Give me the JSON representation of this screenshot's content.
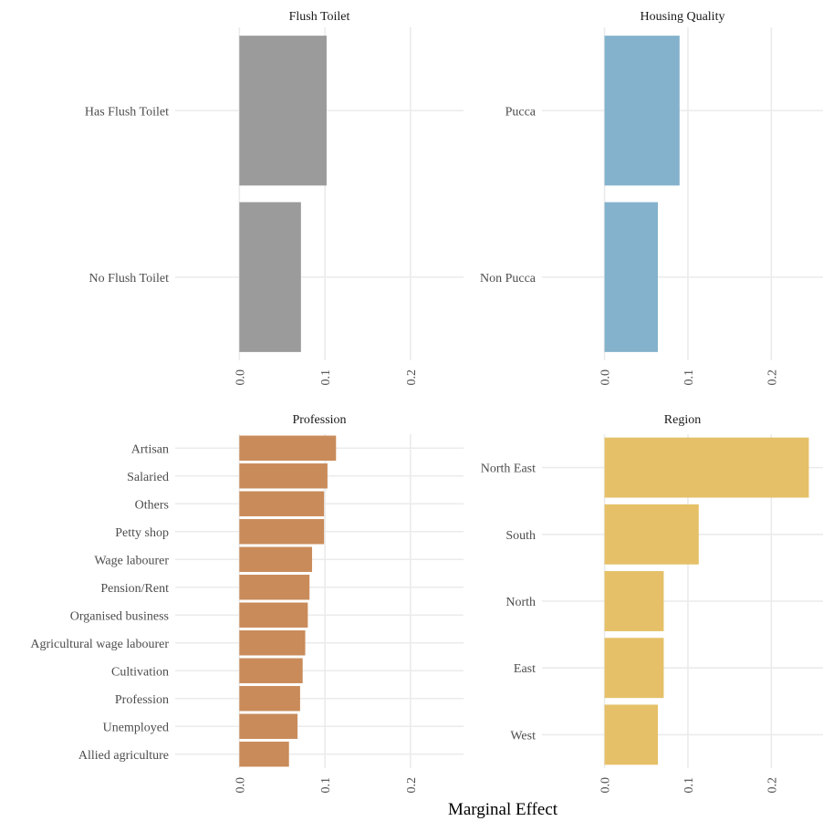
{
  "x_axis_title": "Marginal Effect",
  "chart_data": [
    {
      "type": "bar",
      "orientation": "horizontal",
      "title": "Flush Toilet",
      "categories": [
        "Has Flush Toilet",
        "No Flush Toilet"
      ],
      "values": [
        0.102,
        0.072
      ],
      "xlim": [
        -0.075,
        0.262
      ],
      "ticks": [
        0.0,
        0.1,
        0.2
      ],
      "tick_labels": [
        "0.0",
        "0.1",
        "0.2"
      ],
      "grid": true,
      "color": "#9b9b9b"
    },
    {
      "type": "bar",
      "orientation": "horizontal",
      "title": "Housing Quality",
      "categories": [
        "Pucca",
        "Non Pucca"
      ],
      "values": [
        0.09,
        0.064
      ],
      "xlim": [
        -0.075,
        0.262
      ],
      "ticks": [
        0.0,
        0.1,
        0.2
      ],
      "tick_labels": [
        "0.0",
        "0.1",
        "0.2"
      ],
      "grid": true,
      "color": "#84b2cc"
    },
    {
      "type": "bar",
      "orientation": "horizontal",
      "title": "Profession",
      "categories": [
        "Artisan",
        "Salaried",
        "Others",
        "Petty shop",
        "Wage labourer",
        "Pension/Rent",
        "Organised business",
        "Agricultural wage labourer",
        "Cultivation",
        "Profession",
        "Unemployed",
        "Allied agriculture"
      ],
      "values": [
        0.113,
        0.103,
        0.099,
        0.099,
        0.085,
        0.082,
        0.08,
        0.077,
        0.074,
        0.071,
        0.068,
        0.058
      ],
      "xlim": [
        -0.075,
        0.262
      ],
      "ticks": [
        0.0,
        0.1,
        0.2
      ],
      "tick_labels": [
        "0.0",
        "0.1",
        "0.2"
      ],
      "grid": true,
      "color": "#c98b5a"
    },
    {
      "type": "bar",
      "orientation": "horizontal",
      "title": "Region",
      "categories": [
        "North East",
        "South",
        "North",
        "East",
        "West"
      ],
      "values": [
        0.245,
        0.113,
        0.071,
        0.071,
        0.064
      ],
      "xlim": [
        -0.075,
        0.262
      ],
      "ticks": [
        0.0,
        0.1,
        0.2
      ],
      "tick_labels": [
        "0.0",
        "0.1",
        "0.2"
      ],
      "grid": true,
      "color": "#e5c068"
    }
  ]
}
